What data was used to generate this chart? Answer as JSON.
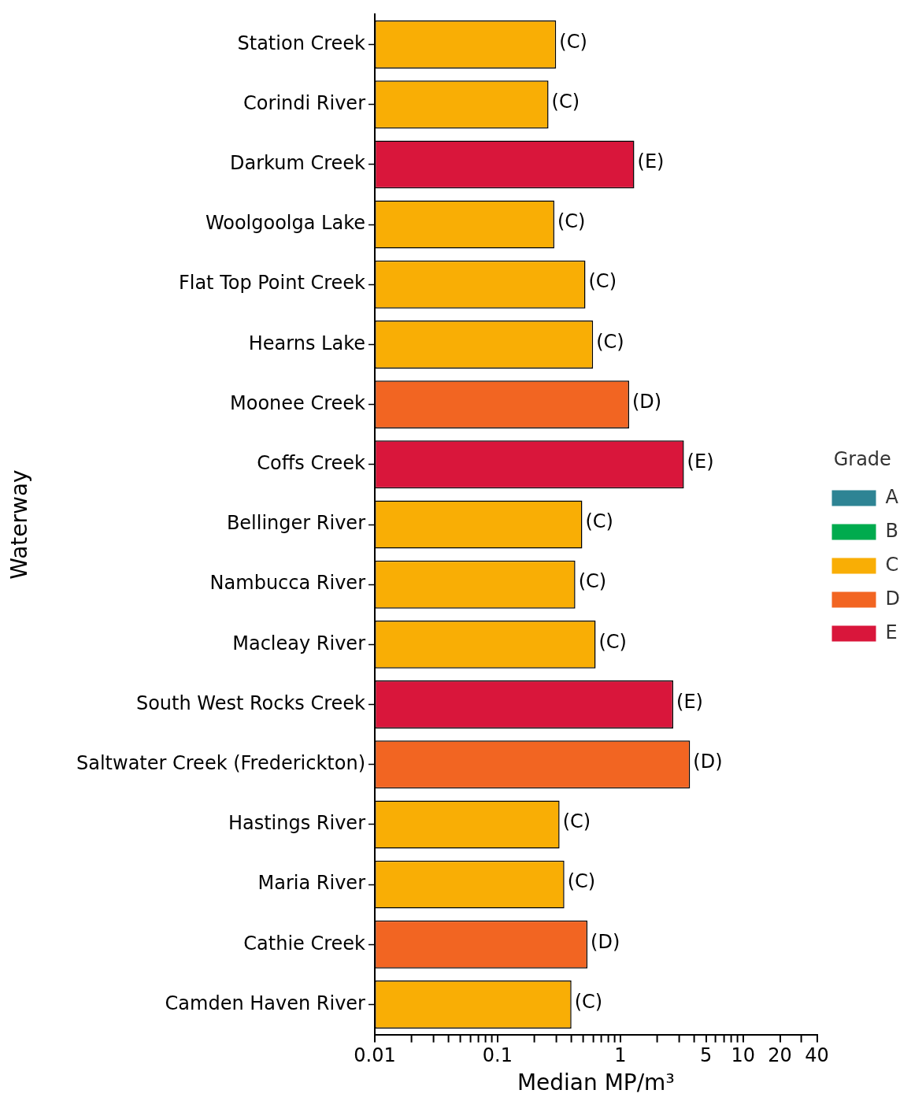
{
  "chart_data": {
    "type": "bar",
    "orientation": "horizontal",
    "xlabel": "Median MP/m³",
    "ylabel": "Waterway",
    "legend_title": "Grade",
    "legend": "right",
    "log": "x",
    "grid": false,
    "categories": [
      "Station Creek",
      "Corindi River",
      "Darkum Creek",
      "Woolgoolga Lake",
      "Flat Top Point Creek",
      "Hearns Lake",
      "Moonee Creek",
      "Coffs Creek",
      "Bellinger River",
      "Nambucca River",
      "Macleay River",
      "South West Rocks Creek",
      "Saltwater Creek (Frederickton)",
      "Hastings River",
      "Maria River",
      "Cathie Creek",
      "Camden Haven River"
    ],
    "xlim": [
      0.01,
      40
    ],
    "xticks": [
      0.01,
      {
        "value": 0.02,
        "label": null
      },
      {
        "value": 0.03,
        "label": null
      },
      {
        "value": 0.04,
        "label": null
      },
      {
        "value": 0.05,
        "label": null
      },
      {
        "value": 0.06,
        "label": null
      },
      {
        "value": 0.07,
        "label": null
      },
      {
        "value": 0.08,
        "label": null
      },
      {
        "value": 0.09,
        "label": null
      },
      0.1,
      {
        "value": 0.2,
        "label": null
      },
      {
        "value": 0.3,
        "label": null
      },
      {
        "value": 0.4,
        "label": null
      },
      {
        "value": 0.5,
        "label": null
      },
      {
        "value": 0.6,
        "label": null
      },
      {
        "value": 0.7,
        "label": null
      },
      {
        "value": 0.8,
        "label": null
      },
      {
        "value": 0.9,
        "label": null
      },
      1,
      {
        "value": 2,
        "label": null
      },
      {
        "value": 3,
        "label": null
      },
      {
        "value": 4,
        "label": null
      },
      5,
      {
        "value": 6,
        "label": null
      },
      {
        "value": 7,
        "label": null
      },
      {
        "value": 8,
        "label": null
      },
      {
        "value": 9,
        "label": null
      },
      10,
      20,
      {
        "value": 30,
        "label": null
      },
      40
    ],
    "series": [
      {
        "name": "A",
        "color": "#2e8494",
        "values": [
          null,
          null,
          null,
          null,
          null,
          null,
          null,
          null,
          null,
          null,
          null,
          null,
          null,
          null,
          null,
          null,
          null
        ]
      },
      {
        "name": "B",
        "color": "#00ab4e",
        "values": [
          null,
          null,
          null,
          null,
          null,
          null,
          null,
          null,
          null,
          null,
          null,
          null,
          null,
          null,
          null,
          null,
          null
        ]
      },
      {
        "name": "C",
        "color": "#f9ae05",
        "values": [
          0.3,
          0.26,
          null,
          0.29,
          0.52,
          0.6,
          null,
          null,
          0.49,
          0.43,
          0.63,
          null,
          null,
          0.32,
          0.35,
          null,
          0.4
        ],
        "value_labels": [
          "(C)",
          "(C)",
          null,
          "(C)",
          "(C)",
          "(C)",
          null,
          null,
          "(C)",
          "(C)",
          "(C)",
          null,
          null,
          "(C)",
          "(C)",
          null,
          "(C)"
        ]
      },
      {
        "name": "D",
        "color": "#f26522",
        "values": [
          null,
          null,
          null,
          null,
          null,
          null,
          1.18,
          null,
          null,
          null,
          null,
          null,
          3.7,
          null,
          null,
          0.54,
          null
        ],
        "value_labels": [
          null,
          null,
          null,
          null,
          null,
          null,
          "(D)",
          null,
          null,
          null,
          null,
          null,
          "(D)",
          null,
          null,
          "(D)",
          null
        ]
      },
      {
        "name": "E",
        "color": "#d9163b",
        "values": [
          null,
          null,
          1.3,
          null,
          null,
          null,
          null,
          3.3,
          null,
          null,
          null,
          2.7,
          null,
          null,
          null,
          null,
          null
        ],
        "value_labels": [
          null,
          null,
          "(E)",
          null,
          null,
          null,
          null,
          "(E)",
          null,
          null,
          null,
          "(E)",
          null,
          null,
          null,
          null,
          null
        ]
      }
    ]
  }
}
